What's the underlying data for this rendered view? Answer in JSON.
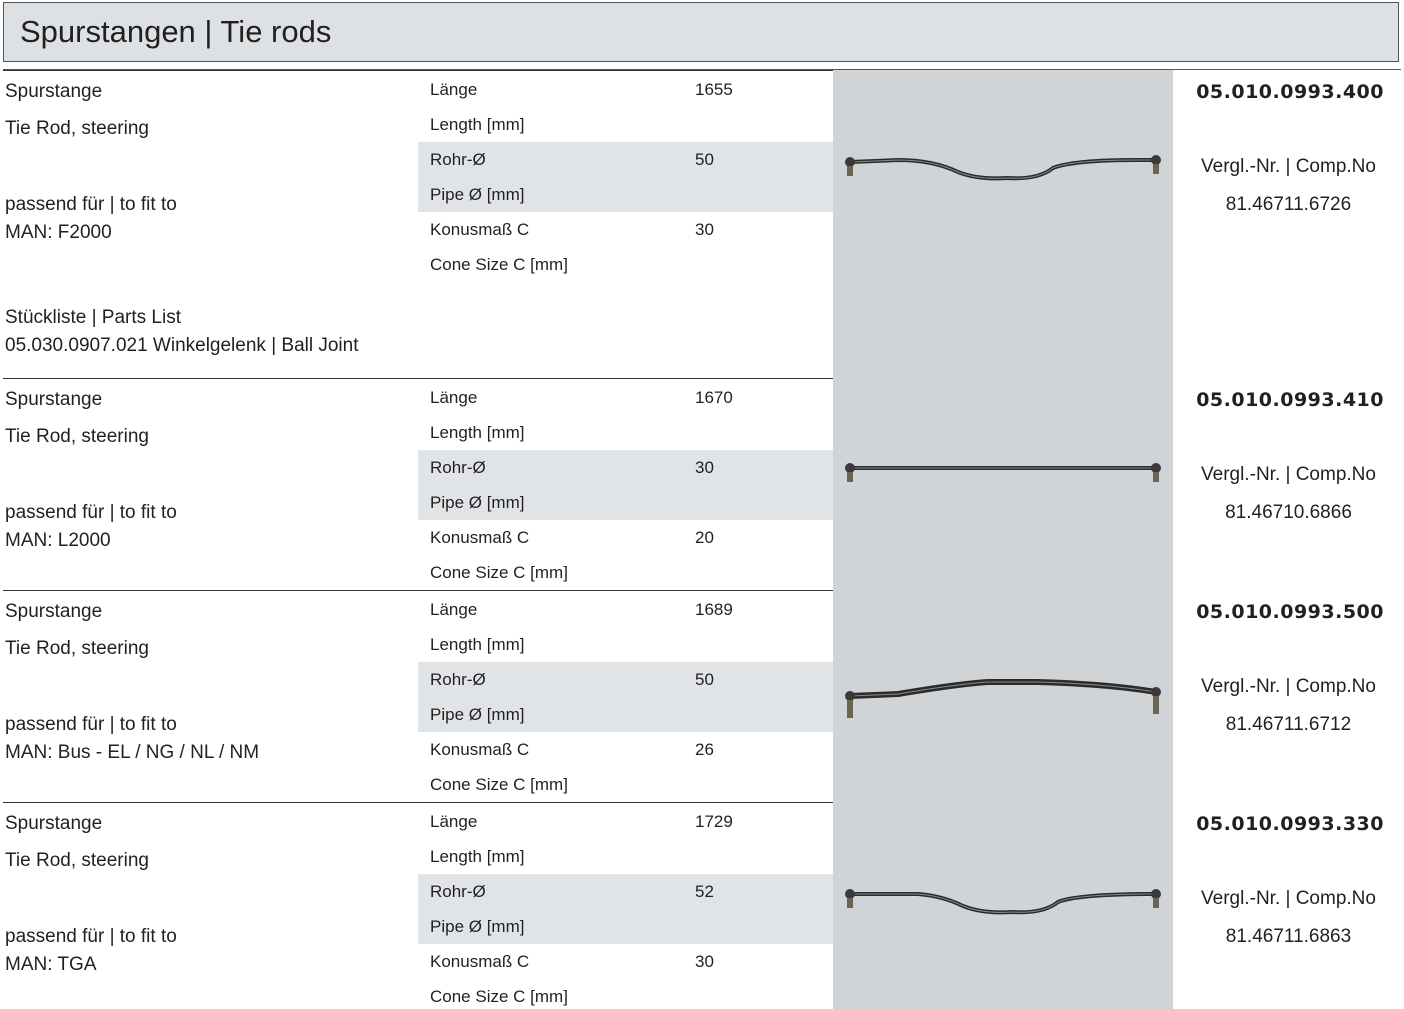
{
  "header": {
    "title": "Spurstangen | Tie rods"
  },
  "products": [
    {
      "name_de": "Spurstange",
      "name_en": "Tie Rod, steering",
      "fit_label": "passend für | to fit to",
      "fit_model": "MAN: F2000",
      "specs": [
        {
          "label_de": "Länge",
          "label_en": "Length [mm]",
          "value": 1655
        },
        {
          "label_de": "Rohr-Ø",
          "label_en": "Pipe Ø [mm]",
          "value": 50
        },
        {
          "label_de": "Konusmaß C",
          "label_en": "Cone Size C [mm]",
          "value": 30
        }
      ],
      "part_no": "05.010.0993.400",
      "comp_label": "Vergl.-Nr. | Comp.No",
      "comp_no": "81.46711.6726",
      "parts_list": {
        "label": "Stückliste | Parts List",
        "item": "05.030.0907.021 Winkelgelenk | Ball Joint"
      }
    },
    {
      "name_de": "Spurstange",
      "name_en": "Tie Rod, steering",
      "fit_label": "passend für | to fit to",
      "fit_model": "MAN: L2000",
      "specs": [
        {
          "label_de": "Länge",
          "label_en": "Length [mm]",
          "value": 1670
        },
        {
          "label_de": "Rohr-Ø",
          "label_en": "Pipe Ø [mm]",
          "value": 30
        },
        {
          "label_de": "Konusmaß C",
          "label_en": "Cone Size C [mm]",
          "value": 20
        }
      ],
      "part_no": "05.010.0993.410",
      "comp_label": "Vergl.-Nr. | Comp.No",
      "comp_no": "81.46710.6866"
    },
    {
      "name_de": "Spurstange",
      "name_en": "Tie Rod, steering",
      "fit_label": "passend für | to fit to",
      "fit_model": "MAN: Bus - EL / NG / NL / NM",
      "specs": [
        {
          "label_de": "Länge",
          "label_en": "Length [mm]",
          "value": 1689
        },
        {
          "label_de": "Rohr-Ø",
          "label_en": "Pipe Ø [mm]",
          "value": 50
        },
        {
          "label_de": "Konusmaß C",
          "label_en": "Cone Size C [mm]",
          "value": 26
        }
      ],
      "part_no": "05.010.0993.500",
      "comp_label": "Vergl.-Nr. | Comp.No",
      "comp_no": "81.46711.6712"
    },
    {
      "name_de": "Spurstange",
      "name_en": "Tie Rod, steering",
      "fit_label": "passend für | to fit to",
      "fit_model": "MAN: TGA",
      "specs": [
        {
          "label_de": "Länge",
          "label_en": "Length [mm]",
          "value": 1729
        },
        {
          "label_de": "Rohr-Ø",
          "label_en": "Pipe Ø [mm]",
          "value": 52
        },
        {
          "label_de": "Konusmaß C",
          "label_en": "Cone Size C [mm]",
          "value": 30
        }
      ],
      "part_no": "05.010.0993.330",
      "comp_label": "Vergl.-Nr. | Comp.No",
      "comp_no": "81.46711.6863"
    }
  ]
}
